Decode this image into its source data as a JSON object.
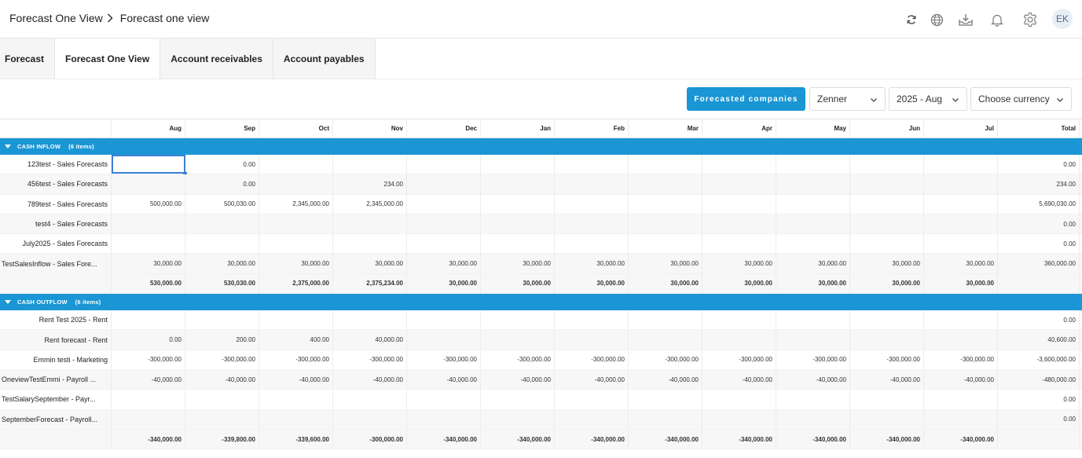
{
  "breadcrumb": {
    "parent": "Forecast One View",
    "current": "Forecast one view"
  },
  "header": {
    "avatar_initials": "EK"
  },
  "tabs": [
    {
      "label": "Forecast",
      "active": false
    },
    {
      "label": "Forecast One View",
      "active": true
    },
    {
      "label": "Account receivables",
      "active": false
    },
    {
      "label": "Account payables",
      "active": false
    }
  ],
  "toolbar": {
    "forecasted_button": "Forecasted companies",
    "company_select": "Zenner",
    "period_select": "2025 - Aug",
    "currency_select": "Choose currency"
  },
  "colors": {
    "accent": "#1a96d4",
    "selection": "#3d7fd6"
  },
  "table": {
    "columns": [
      "Aug",
      "Sep",
      "Oct",
      "Nov",
      "Dec",
      "Jan",
      "Feb",
      "Mar",
      "Apr",
      "May",
      "Jun",
      "Jul",
      "Total"
    ],
    "groups": [
      {
        "title": "CASH INFLOW",
        "count": "(6 items)",
        "rows": [
          {
            "label": "123test - Sales Forecasts",
            "values": [
              "",
              "0.00",
              "",
              "",
              "",
              "",
              "",
              "",
              "",
              "",
              "",
              "",
              "0.00"
            ]
          },
          {
            "label": "456test - Sales Forecasts",
            "values": [
              "",
              "0.00",
              "",
              "234.00",
              "",
              "",
              "",
              "",
              "",
              "",
              "",
              "",
              "234.00"
            ]
          },
          {
            "label": "789test - Sales Forecasts",
            "values": [
              "500,000.00",
              "500,030.00",
              "2,345,000.00",
              "2,345,000.00",
              "",
              "",
              "",
              "",
              "",
              "",
              "",
              "",
              "5,690,030.00"
            ]
          },
          {
            "label": "test4 - Sales Forecasts",
            "values": [
              "",
              "",
              "",
              "",
              "",
              "",
              "",
              "",
              "",
              "",
              "",
              "",
              "0.00"
            ]
          },
          {
            "label": "July2025 - Sales Forecasts",
            "values": [
              "",
              "",
              "",
              "",
              "",
              "",
              "",
              "",
              "",
              "",
              "",
              "",
              "0.00"
            ]
          },
          {
            "label": "TestSalesInflow - Sales Fore...",
            "values": [
              "30,000.00",
              "30,000.00",
              "30,000.00",
              "30,000.00",
              "30,000.00",
              "30,000.00",
              "30,000.00",
              "30,000.00",
              "30,000.00",
              "30,000.00",
              "30,000.00",
              "30,000.00",
              "360,000.00"
            ]
          }
        ],
        "totals": [
          "530,000.00",
          "530,030.00",
          "2,375,000.00",
          "2,375,234.00",
          "30,000.00",
          "30,000.00",
          "30,000.00",
          "30,000.00",
          "30,000.00",
          "30,000.00",
          "30,000.00",
          "30,000.00",
          ""
        ]
      },
      {
        "title": "CASH OUTFLOW",
        "count": "(6 items)",
        "rows": [
          {
            "label": "Rent Test 2025 - Rent",
            "values": [
              "",
              "",
              "",
              "",
              "",
              "",
              "",
              "",
              "",
              "",
              "",
              "",
              "0.00"
            ]
          },
          {
            "label": "Rent forecast - Rent",
            "values": [
              "0.00",
              "200.00",
              "400.00",
              "40,000.00",
              "",
              "",
              "",
              "",
              "",
              "",
              "",
              "",
              "40,600.00"
            ]
          },
          {
            "label": "Emmin testi - Marketing",
            "values": [
              "-300,000.00",
              "-300,000.00",
              "-300,000.00",
              "-300,000.00",
              "-300,000.00",
              "-300,000.00",
              "-300,000.00",
              "-300,000.00",
              "-300,000.00",
              "-300,000.00",
              "-300,000.00",
              "-300,000.00",
              "-3,600,000.00"
            ]
          },
          {
            "label": "OneviewTestEmmi - Payroll ...",
            "values": [
              "-40,000.00",
              "-40,000.00",
              "-40,000.00",
              "-40,000.00",
              "-40,000.00",
              "-40,000.00",
              "-40,000.00",
              "-40,000.00",
              "-40,000.00",
              "-40,000.00",
              "-40,000.00",
              "-40,000.00",
              "-480,000.00"
            ]
          },
          {
            "label": "TestSalarySeptember - Payr...",
            "values": [
              "",
              "",
              "",
              "",
              "",
              "",
              "",
              "",
              "",
              "",
              "",
              "",
              "0.00"
            ]
          },
          {
            "label": "SeptemberForecast - Payroll...",
            "values": [
              "",
              "",
              "",
              "",
              "",
              "",
              "",
              "",
              "",
              "",
              "",
              "",
              "0.00"
            ]
          }
        ],
        "totals": [
          "-340,000.00",
          "-339,800.00",
          "-339,600.00",
          "-300,000.00",
          "-340,000.00",
          "-340,000.00",
          "-340,000.00",
          "-340,000.00",
          "-340,000.00",
          "-340,000.00",
          "-340,000.00",
          "-340,000.00",
          ""
        ]
      }
    ]
  }
}
